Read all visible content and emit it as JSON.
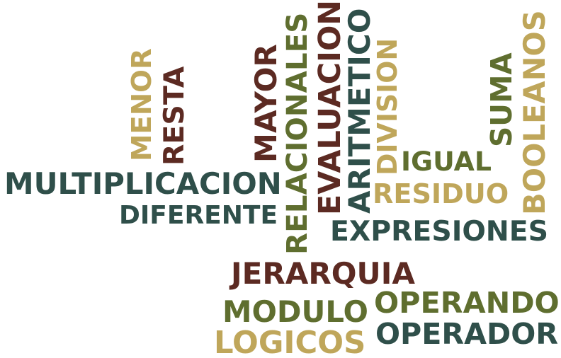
{
  "colors": {
    "dark_teal": "#2f4f4a",
    "olive": "#5f6e2f",
    "gold": "#bfa65a",
    "maroon": "#5c2a22",
    "background": "#ffffff"
  },
  "words": [
    {
      "id": "menor",
      "text": "MENOR",
      "color": "#bfa65a",
      "orientation": "vertical"
    },
    {
      "id": "resta",
      "text": "RESTA",
      "color": "#5c2a22",
      "orientation": "vertical"
    },
    {
      "id": "mayor",
      "text": "MAYOR",
      "color": "#5c2a22",
      "orientation": "vertical"
    },
    {
      "id": "relacionales",
      "text": "RELACIONALES",
      "color": "#5f6e2f",
      "orientation": "vertical"
    },
    {
      "id": "evaluacion",
      "text": "EVALUACION",
      "color": "#5c2a22",
      "orientation": "vertical"
    },
    {
      "id": "aritmetico",
      "text": "ARITMETICO",
      "color": "#2f4f4a",
      "orientation": "vertical"
    },
    {
      "id": "division",
      "text": "DIVISION",
      "color": "#bfa65a",
      "orientation": "vertical"
    },
    {
      "id": "suma",
      "text": "SUMA",
      "color": "#5f6e2f",
      "orientation": "vertical"
    },
    {
      "id": "booleanos",
      "text": "BOOLEANOS",
      "color": "#bfa65a",
      "orientation": "vertical"
    },
    {
      "id": "multiplicacion",
      "text": "MULTIPLICACION",
      "color": "#2f4f4a",
      "orientation": "horizontal"
    },
    {
      "id": "diferente",
      "text": "DIFERENTE",
      "color": "#2f4f4a",
      "orientation": "horizontal"
    },
    {
      "id": "igual",
      "text": "IGUAL",
      "color": "#5f6e2f",
      "orientation": "horizontal"
    },
    {
      "id": "residuo",
      "text": "RESIDUO",
      "color": "#bfa65a",
      "orientation": "horizontal"
    },
    {
      "id": "expresiones",
      "text": "EXPRESIONES",
      "color": "#2f4f4a",
      "orientation": "horizontal"
    },
    {
      "id": "jerarquia",
      "text": "JERARQUIA",
      "color": "#5c2a22",
      "orientation": "horizontal"
    },
    {
      "id": "modulo",
      "text": "MODULO",
      "color": "#5f6e2f",
      "orientation": "horizontal"
    },
    {
      "id": "operando",
      "text": "OPERANDO",
      "color": "#5f6e2f",
      "orientation": "horizontal"
    },
    {
      "id": "operador",
      "text": "OPERADOR",
      "color": "#2f4f4a",
      "orientation": "horizontal"
    },
    {
      "id": "logicos",
      "text": "LOGICOS",
      "color": "#bfa65a",
      "orientation": "horizontal"
    }
  ]
}
